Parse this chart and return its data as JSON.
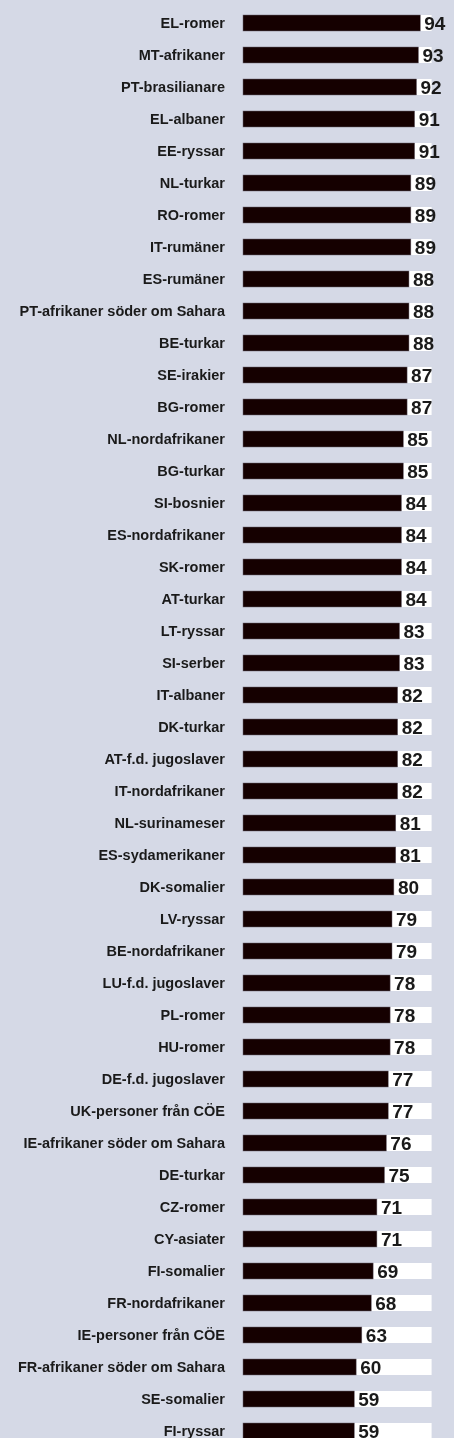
{
  "chart_data": {
    "type": "bar",
    "orientation": "horizontal",
    "tick_labels": "y",
    "data_labels": true,
    "color": "#150000",
    "xlim": [
      0,
      100
    ],
    "categories": [
      "EL-romer",
      "MT-afrikaner",
      "PT-brasilianare",
      "EL-albaner",
      "EE-ryssar",
      "NL-turkar",
      "RO-romer",
      "IT-rumäner",
      "ES-rumäner",
      "PT-afrikaner söder om Sahara",
      "BE-turkar",
      "SE-irakier",
      "BG-romer",
      "NL-nordafrikaner",
      "BG-turkar",
      "SI-bosnier",
      "ES-nordafrikaner",
      "SK-romer",
      "AT-turkar",
      "LT-ryssar",
      "SI-serber",
      "IT-albaner",
      "DK-turkar",
      "AT-f.d. jugoslaver",
      "IT-nordafrikaner",
      "NL-surinameser",
      "ES-sydamerikaner",
      "DK-somalier",
      "LV-ryssar",
      "BE-nordafrikaner",
      "LU-f.d. jugoslaver",
      "PL-romer",
      "HU-romer",
      "DE-f.d. jugoslaver",
      "UK-personer från CÖE",
      "IE-afrikaner söder om Sahara",
      "DE-turkar",
      "CZ-romer",
      "CY-asiater",
      "FI-somalier",
      "FR-nordafrikaner",
      "IE-personer från CÖE",
      "FR-afrikaner söder om Sahara",
      "SE-somalier",
      "FI-ryssar"
    ],
    "values": [
      94,
      93,
      92,
      91,
      91,
      89,
      89,
      89,
      88,
      88,
      88,
      87,
      87,
      85,
      85,
      84,
      84,
      84,
      84,
      83,
      83,
      82,
      82,
      82,
      82,
      81,
      81,
      80,
      79,
      79,
      78,
      78,
      78,
      77,
      77,
      76,
      75,
      71,
      71,
      69,
      68,
      63,
      60,
      59,
      59
    ]
  }
}
